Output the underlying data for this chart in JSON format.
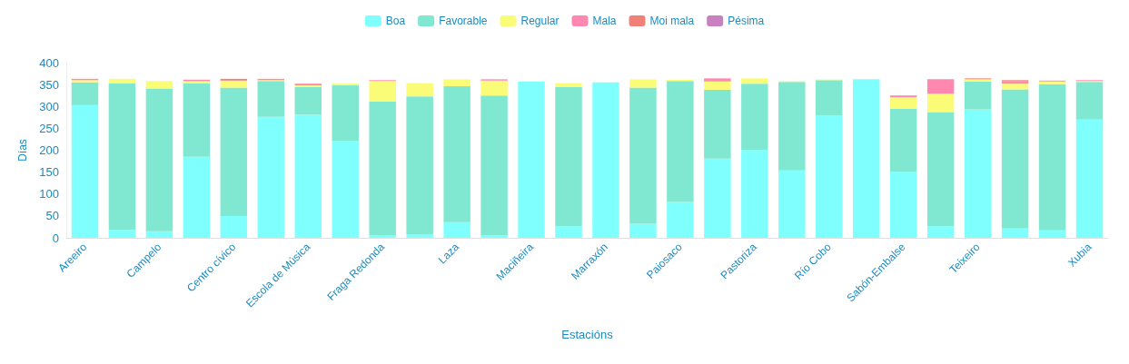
{
  "chart_data": {
    "type": "bar",
    "stacked": true,
    "xlabel": "Estacións",
    "ylabel": "Días",
    "categories": [
      "Areeiro",
      null,
      "Campelo",
      null,
      "Centro cívico",
      null,
      "Escola de Música",
      null,
      "Fraga Redonda",
      null,
      "Laza",
      null,
      "Maciñeira",
      null,
      "Marraxón",
      null,
      "Paiosaco",
      null,
      "Pastoriza",
      null,
      "Río Cobo",
      null,
      "Sabón-Embalse",
      null,
      "Teixeiro",
      null,
      null,
      "Xubia"
    ],
    "series": [
      {
        "name": "Boa",
        "color": "#80ffff",
        "values": [
          303,
          18,
          15,
          185,
          50,
          276,
          281,
          222,
          5,
          8,
          36,
          5,
          357,
          27,
          355,
          32,
          82,
          181,
          200,
          154,
          279,
          362,
          151,
          27,
          293,
          22,
          17,
          270
        ]
      },
      {
        "name": "Favorable",
        "color": "#80e8d0",
        "values": [
          52,
          335,
          326,
          168,
          293,
          82,
          63,
          126,
          306,
          315,
          310,
          320,
          0,
          317,
          0,
          311,
          276,
          157,
          152,
          202,
          81,
          0,
          144,
          260,
          64,
          317,
          334,
          86
        ]
      },
      {
        "name": "Regular",
        "color": "#fafc78",
        "values": [
          5,
          10,
          17,
          5,
          16,
          2,
          4,
          4,
          47,
          30,
          16,
          34,
          0,
          9,
          0,
          19,
          3,
          19,
          12,
          2,
          2,
          0,
          26,
          42,
          5,
          13,
          6,
          2
        ]
      },
      {
        "name": "Mala",
        "color": "#ff88b0",
        "values": [
          3,
          0,
          0,
          3,
          0,
          3,
          4,
          0,
          2,
          0,
          0,
          3,
          0,
          0,
          0,
          0,
          0,
          7,
          0,
          0,
          0,
          0,
          4,
          33,
          0,
          6,
          2,
          2
        ]
      },
      {
        "name": "Moi mala",
        "color": "#f08078",
        "values": [
          0,
          0,
          0,
          0,
          4,
          0,
          0,
          0,
          0,
          0,
          0,
          0,
          0,
          0,
          0,
          0,
          0,
          0,
          0,
          0,
          0,
          0,
          0,
          0,
          2,
          2,
          0,
          0
        ]
      },
      {
        "name": "Pésima",
        "color": "#c880c0",
        "values": [
          0,
          0,
          0,
          0,
          0,
          0,
          0,
          0,
          0,
          0,
          0,
          0,
          0,
          0,
          0,
          0,
          0,
          0,
          0,
          0,
          0,
          0,
          0,
          0,
          0,
          0,
          0,
          0
        ]
      }
    ],
    "ylim": [
      0,
      400
    ],
    "yticks": [
      0,
      50,
      100,
      150,
      200,
      250,
      300,
      350,
      400
    ],
    "grid": false,
    "legend": "top"
  }
}
